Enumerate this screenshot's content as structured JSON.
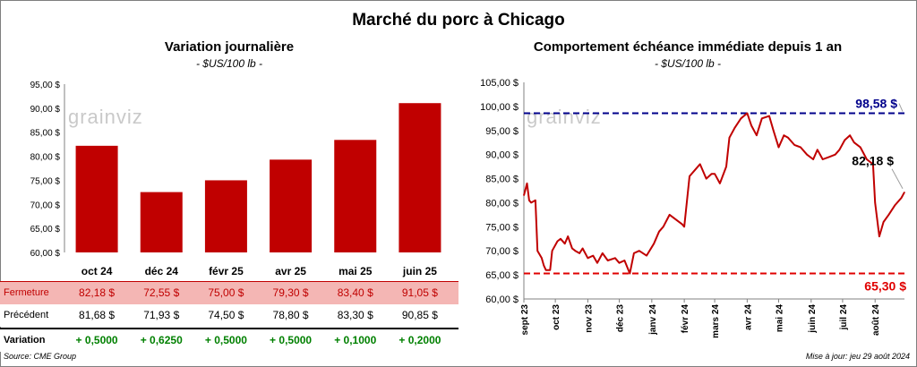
{
  "title": "Marché du porc à Chicago",
  "watermark": "grainviz",
  "left_panel": {
    "title": "Variation journalière",
    "subtitle": "- $US/100 lb -",
    "table": {
      "rows": [
        {
          "label": "Fermeture",
          "values": [
            "82,18 $",
            "72,55 $",
            "75,00 $",
            "79,30 $",
            "83,40 $",
            "91,05 $"
          ]
        },
        {
          "label": "Précédent",
          "values": [
            "81,68 $",
            "71,93 $",
            "74,50 $",
            "78,80 $",
            "83,30 $",
            "90,85 $"
          ]
        },
        {
          "label": "Variation",
          "values": [
            "+ 0,5000",
            "+ 0,6250",
            "+ 0,5000",
            "+ 0,5000",
            "+ 0,1000",
            "+ 0,2000"
          ]
        }
      ]
    }
  },
  "right_panel": {
    "title": "Comportement échéance immédiate depuis 1 an",
    "subtitle": "- $US/100 lb -",
    "max_label": "98,58 $",
    "min_label": "65,30 $",
    "last_label": "82,18 $"
  },
  "source": "Source: CME Group",
  "updated": "Mise à jour: jeu 29 août 2024",
  "colors": {
    "bar": "#c00000",
    "line": "#c00000",
    "max_line": "#00008b",
    "min_line": "#e00000",
    "closing_row_bg": "#f4b6b4",
    "positive": "#008000"
  },
  "chart_data": [
    {
      "type": "bar",
      "categories": [
        "oct 24",
        "déc 24",
        "févr 25",
        "avr 25",
        "mai 25",
        "juin 25"
      ],
      "values": [
        82.18,
        72.55,
        75.0,
        79.3,
        83.4,
        91.05
      ],
      "yticks": [
        "60,00 $",
        "65,00 $",
        "70,00 $",
        "75,00 $",
        "80,00 $",
        "85,00 $",
        "90,00 $",
        "95,00 $"
      ],
      "ylim": [
        60,
        95
      ],
      "grid": false
    },
    {
      "type": "line",
      "x_ticks": [
        "sept 23",
        "oct 23",
        "nov 23",
        "déc 23",
        "janv 24",
        "févr 24",
        "mars 24",
        "avr 24",
        "mai 24",
        "juin 24",
        "juil 24",
        "août 24"
      ],
      "yticks": [
        "60,00 $",
        "65,00 $",
        "70,00 $",
        "75,00 $",
        "80,00 $",
        "85,00 $",
        "90,00 $",
        "95,00 $",
        "100,00 $",
        "105,00 $"
      ],
      "ylim": [
        60,
        105
      ],
      "x": [
        "2023-09-01",
        "2023-09-04",
        "2023-09-06",
        "2023-09-08",
        "2023-09-12",
        "2023-09-14",
        "2023-09-18",
        "2023-09-20",
        "2023-09-22",
        "2023-09-26",
        "2023-09-28",
        "2023-10-03",
        "2023-10-06",
        "2023-10-10",
        "2023-10-13",
        "2023-10-17",
        "2023-10-20",
        "2023-10-24",
        "2023-10-27",
        "2023-11-01",
        "2023-11-06",
        "2023-11-10",
        "2023-11-15",
        "2023-11-20",
        "2023-11-27",
        "2023-12-01",
        "2023-12-06",
        "2023-12-11",
        "2023-12-15",
        "2023-12-20",
        "2023-12-27",
        "2024-01-03",
        "2024-01-08",
        "2024-01-12",
        "2024-01-18",
        "2024-01-24",
        "2024-01-30",
        "2024-02-01",
        "2024-02-06",
        "2024-02-12",
        "2024-02-16",
        "2024-02-22",
        "2024-02-27",
        "2024-03-01",
        "2024-03-06",
        "2024-03-12",
        "2024-03-15",
        "2024-03-20",
        "2024-03-26",
        "2024-04-01",
        "2024-04-05",
        "2024-04-10",
        "2024-04-15",
        "2024-04-22",
        "2024-04-26",
        "2024-05-01",
        "2024-05-06",
        "2024-05-10",
        "2024-05-16",
        "2024-05-22",
        "2024-05-28",
        "2024-06-03",
        "2024-06-07",
        "2024-06-12",
        "2024-06-18",
        "2024-06-24",
        "2024-06-28",
        "2024-07-03",
        "2024-07-08",
        "2024-07-12",
        "2024-07-18",
        "2024-07-24",
        "2024-07-30",
        "2024-08-01",
        "2024-08-05",
        "2024-08-09",
        "2024-08-14",
        "2024-08-20",
        "2024-08-26",
        "2024-08-29"
      ],
      "y": [
        81.5,
        84.0,
        80.5,
        80.0,
        80.5,
        70.0,
        68.5,
        67.0,
        66.0,
        66.0,
        70.0,
        72.0,
        72.5,
        71.5,
        73.0,
        70.5,
        70.0,
        69.5,
        70.5,
        68.5,
        69.0,
        67.5,
        69.5,
        68.0,
        68.5,
        67.5,
        68.0,
        65.3,
        69.5,
        70.0,
        69.0,
        71.5,
        74.0,
        75.0,
        77.5,
        76.5,
        75.5,
        75.0,
        85.5,
        87.0,
        88.0,
        85.0,
        86.0,
        86.0,
        84.0,
        87.5,
        93.5,
        95.5,
        97.5,
        98.58,
        96.0,
        94.0,
        97.5,
        98.0,
        95.0,
        91.5,
        94.0,
        93.5,
        92.0,
        91.5,
        90.0,
        89.0,
        91.0,
        89.0,
        89.5,
        90.0,
        91.0,
        93.0,
        94.0,
        92.5,
        91.5,
        89.0,
        88.0,
        80.0,
        73.0,
        76.0,
        77.5,
        79.5,
        81.0,
        82.18
      ],
      "max": 98.58,
      "min": 65.3,
      "last": 82.18
    }
  ]
}
